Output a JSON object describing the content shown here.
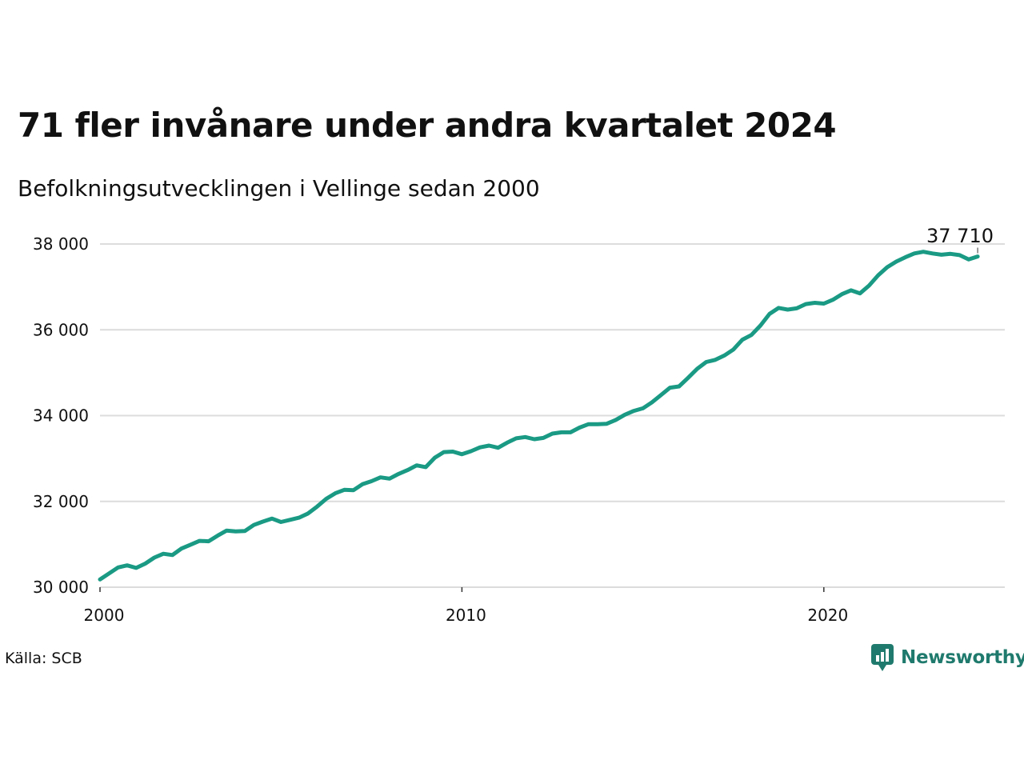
{
  "title": "71 fler invånare under andra kvartalet 2024",
  "subtitle": "Befolkningsutvecklingen i Vellinge sedan 2000",
  "source": "Källa: SCB",
  "brand": {
    "name": "Newsworthy",
    "color": "#1f7a6d"
  },
  "colors": {
    "line": "#1a9a84",
    "grid": "#dcdcdc"
  },
  "chart_data": {
    "type": "line",
    "title": "71 fler invånare under andra kvartalet 2024",
    "subtitle": "Befolkningsutvecklingen i Vellinge sedan 2000",
    "xlabel": "",
    "ylabel": "",
    "xlim": [
      2000,
      2025
    ],
    "ylim": [
      30000,
      38000
    ],
    "x_ticks": [
      {
        "value": 2000,
        "label": "2000"
      },
      {
        "value": 2010,
        "label": "2010"
      },
      {
        "value": 2020,
        "label": "2020"
      }
    ],
    "y_ticks": [
      {
        "value": 30000,
        "label": "30 000"
      },
      {
        "value": 32000,
        "label": "32 000"
      },
      {
        "value": 34000,
        "label": "34 000"
      },
      {
        "value": 36000,
        "label": "36 000"
      },
      {
        "value": 38000,
        "label": "38 000"
      }
    ],
    "grid": true,
    "end_label": "37 710",
    "series": [
      {
        "x": [
          2000.0,
          2000.25,
          2000.5,
          2000.75,
          2001.0,
          2001.25,
          2001.5,
          2001.75,
          2002.0,
          2002.25,
          2002.5,
          2002.75,
          2003.0,
          2003.25,
          2003.5,
          2003.75,
          2004.0,
          2004.25,
          2004.5,
          2004.75,
          2005.0,
          2005.25,
          2005.5,
          2005.75,
          2006.0,
          2006.25,
          2006.5,
          2006.75,
          2007.0,
          2007.25,
          2007.5,
          2007.75,
          2008.0,
          2008.25,
          2008.5,
          2008.75,
          2009.0,
          2009.25,
          2009.5,
          2009.75,
          2010.0,
          2010.25,
          2010.5,
          2010.75,
          2011.0,
          2011.25,
          2011.5,
          2011.75,
          2012.0,
          2012.25,
          2012.5,
          2012.75,
          2013.0,
          2013.25,
          2013.5,
          2013.75,
          2014.0,
          2014.25,
          2014.5,
          2014.75,
          2015.0,
          2015.25,
          2015.5,
          2015.75,
          2016.0,
          2016.25,
          2016.5,
          2016.75,
          2017.0,
          2017.25,
          2017.5,
          2017.75,
          2018.0,
          2018.25,
          2018.5,
          2018.75,
          2019.0,
          2019.25,
          2019.5,
          2019.75,
          2020.0,
          2020.25,
          2020.5,
          2020.75,
          2021.0,
          2021.25,
          2021.5,
          2021.75,
          2022.0,
          2022.25,
          2022.5,
          2022.75,
          2023.0,
          2023.25,
          2023.5,
          2023.75,
          2024.0,
          2024.25
        ],
        "values": [
          30180,
          30320,
          30460,
          30510,
          30450,
          30550,
          30690,
          30780,
          30750,
          30900,
          30990,
          31080,
          31070,
          31200,
          31320,
          31300,
          31310,
          31450,
          31530,
          31600,
          31520,
          31570,
          31620,
          31720,
          31880,
          32060,
          32190,
          32270,
          32260,
          32400,
          32470,
          32560,
          32530,
          32640,
          32730,
          32840,
          32800,
          33020,
          33150,
          33160,
          33100,
          33170,
          33260,
          33300,
          33250,
          33370,
          33470,
          33500,
          33450,
          33480,
          33580,
          33610,
          33610,
          33720,
          33800,
          33800,
          33810,
          33900,
          34020,
          34110,
          34170,
          34310,
          34480,
          34650,
          34680,
          34880,
          35090,
          35250,
          35300,
          35400,
          35540,
          35770,
          35880,
          36100,
          36370,
          36510,
          36470,
          36500,
          36600,
          36630,
          36610,
          36700,
          36830,
          36920,
          36850,
          37030,
          37270,
          37460,
          37590,
          37690,
          37780,
          37820,
          37780,
          37750,
          37770,
          37740,
          37640,
          37710
        ]
      }
    ]
  }
}
